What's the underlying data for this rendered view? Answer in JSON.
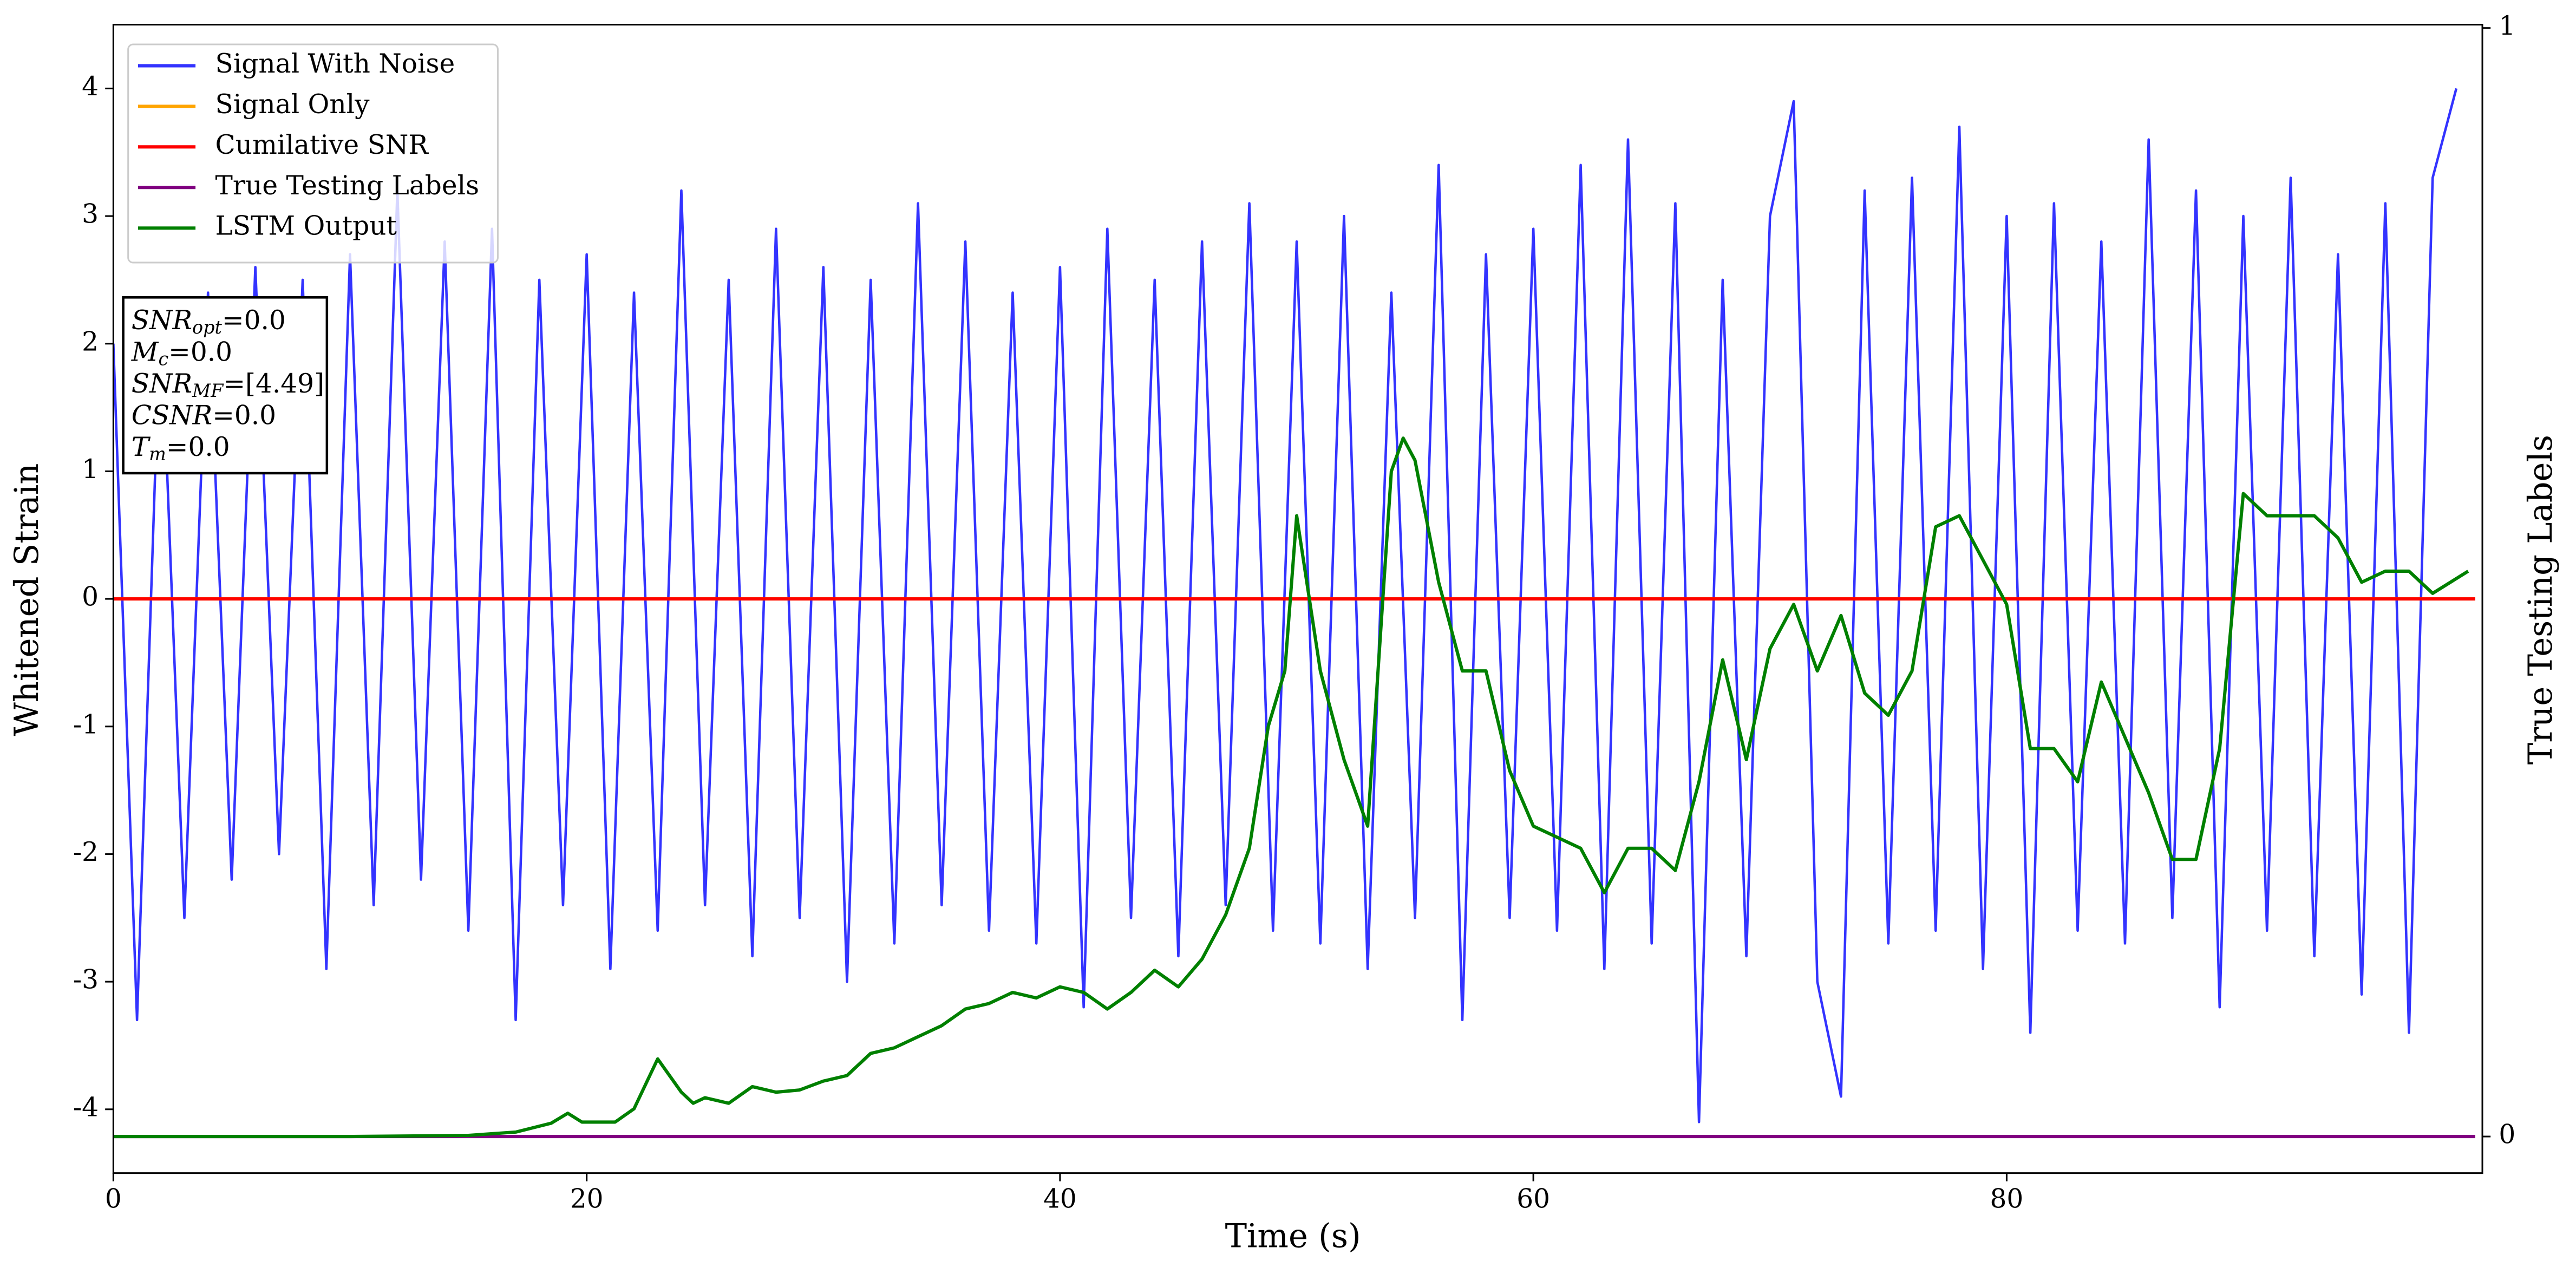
{
  "chart_data": {
    "type": "line",
    "xlabel": "Time (s)",
    "ylabel": "Whitened Strain",
    "y2label": "True Testing Labels",
    "xlim": [
      0,
      100.1
    ],
    "xticks": [
      0,
      20,
      40,
      60,
      80
    ],
    "ylim": [
      -4.5,
      4.5
    ],
    "yticks": [
      -4,
      -3,
      -2,
      -1,
      0,
      1,
      2,
      3,
      4
    ],
    "y2lim": [
      -0.033,
      1.003
    ],
    "y2ticks": [
      0,
      1
    ],
    "legend": "upper left",
    "series": [
      {
        "name": "Signal With Noise",
        "color": "#3333ff",
        "x": [
          0,
          1,
          2,
          3,
          4,
          5,
          6,
          7,
          8,
          9,
          10,
          11,
          12,
          13,
          14,
          15,
          16,
          17,
          18,
          19,
          20,
          21,
          22,
          23,
          24,
          25,
          26,
          27,
          28,
          29,
          30,
          31,
          32,
          33,
          34,
          35,
          36,
          37,
          38,
          39,
          40,
          41,
          42,
          43,
          44,
          45,
          46,
          47,
          48,
          49,
          50,
          51,
          52,
          53,
          54,
          55,
          56,
          57,
          58,
          59,
          60,
          61,
          62,
          63,
          64,
          65,
          66,
          67,
          68,
          69,
          70,
          71,
          72,
          73,
          74,
          75,
          76,
          77,
          78,
          79,
          80,
          81,
          82,
          83,
          84,
          85,
          86,
          87,
          88,
          89,
          90,
          91,
          92,
          93,
          94,
          95,
          96,
          97,
          98,
          99
        ],
        "values": [
          2.0,
          -3.3,
          2.3,
          -2.5,
          2.4,
          -2.2,
          2.6,
          -2.0,
          2.5,
          -2.9,
          2.7,
          -2.4,
          3.2,
          -2.2,
          2.8,
          -2.6,
          2.9,
          -3.3,
          2.5,
          -2.4,
          2.7,
          -2.9,
          2.4,
          -2.6,
          3.2,
          -2.4,
          2.5,
          -2.8,
          2.9,
          -2.5,
          2.6,
          -3.0,
          2.5,
          -2.7,
          3.1,
          -2.4,
          2.8,
          -2.6,
          2.4,
          -2.7,
          2.6,
          -3.2,
          2.9,
          -2.5,
          2.5,
          -2.8,
          2.8,
          -2.4,
          3.1,
          -2.6,
          2.8,
          -2.7,
          3.0,
          -2.9,
          2.4,
          -2.5,
          3.4,
          -3.3,
          2.7,
          -2.5,
          2.9,
          -2.6,
          3.4,
          -2.9,
          3.6,
          -2.7,
          3.1,
          -4.1,
          2.5,
          -2.8,
          3.0,
          3.9,
          -3.0,
          -3.9,
          3.2,
          -2.7,
          3.3,
          -2.6,
          3.7,
          -2.9,
          3.0,
          -3.4,
          3.1,
          -2.6,
          2.8,
          -2.7,
          3.6,
          -2.5,
          3.2,
          -3.2,
          3.0,
          -2.6,
          3.3,
          -2.8,
          2.7,
          -3.1,
          3.1,
          -3.4,
          3.3,
          4.0
        ]
      },
      {
        "name": "Signal Only",
        "color": "#ffa500",
        "x": [
          0,
          99.8
        ],
        "values": [
          0,
          0
        ]
      },
      {
        "name": "Cumilative SNR",
        "color": "#ff0000",
        "x": [
          0,
          99.8
        ],
        "values": [
          0,
          0
        ]
      },
      {
        "name": "True Testing Labels",
        "color": "#800080",
        "axis": "y2",
        "x": [
          0,
          99.8
        ],
        "values": [
          0,
          0
        ]
      },
      {
        "name": "LSTM Output",
        "color": "#008000",
        "axis": "y2",
        "x": [
          0,
          10,
          15,
          17,
          18.5,
          19.2,
          19.8,
          20.5,
          21.2,
          22,
          23,
          24,
          24.5,
          25,
          26,
          27,
          28,
          29,
          30,
          31,
          32,
          33,
          34,
          35,
          36,
          37,
          38,
          39,
          40,
          41,
          42,
          43,
          44,
          45,
          46,
          47,
          48,
          48.8,
          49.5,
          50,
          51,
          52,
          53,
          54,
          54.5,
          55,
          56,
          57,
          58,
          59,
          60,
          61,
          62,
          63,
          64,
          65,
          66,
          67,
          68,
          69,
          70,
          71,
          72,
          73,
          74,
          75,
          76,
          77,
          78,
          79,
          80,
          81,
          82,
          83,
          84,
          85,
          86,
          87,
          88,
          89,
          90,
          91,
          92,
          93,
          94,
          95,
          96,
          97,
          98,
          99.5
        ],
        "values": [
          0,
          0,
          0.001,
          0.004,
          0.012,
          0.021,
          0.013,
          0.013,
          0.013,
          0.025,
          0.07,
          0.04,
          0.03,
          0.035,
          0.03,
          0.045,
          0.04,
          0.042,
          0.05,
          0.055,
          0.075,
          0.08,
          0.09,
          0.1,
          0.115,
          0.12,
          0.13,
          0.125,
          0.135,
          0.13,
          0.115,
          0.13,
          0.15,
          0.135,
          0.16,
          0.2,
          0.26,
          0.37,
          0.42,
          0.56,
          0.42,
          0.34,
          0.28,
          0.6,
          0.63,
          0.61,
          0.5,
          0.42,
          0.42,
          0.33,
          0.28,
          0.27,
          0.26,
          0.22,
          0.26,
          0.26,
          0.24,
          0.32,
          0.43,
          0.34,
          0.44,
          0.48,
          0.42,
          0.47,
          0.4,
          0.38,
          0.42,
          0.55,
          0.56,
          0.52,
          0.48,
          0.35,
          0.35,
          0.32,
          0.41,
          0.36,
          0.31,
          0.25,
          0.25,
          0.35,
          0.58,
          0.56,
          0.56,
          0.56,
          0.54,
          0.5,
          0.51,
          0.51,
          0.49,
          0.51
        ]
      }
    ],
    "annotation_lines": [
      {
        "var": "SNR",
        "sub": "opt",
        "text": "=0.0"
      },
      {
        "var": "M",
        "sub": "c",
        "text": "=0.0"
      },
      {
        "var": "SNR",
        "sub": "MF",
        "text": "=[4.49]"
      },
      {
        "var": "CSNR",
        "sub": null,
        "text": "=0.0"
      },
      {
        "var": "T",
        "sub": "m",
        "text": "=0.0"
      }
    ]
  }
}
